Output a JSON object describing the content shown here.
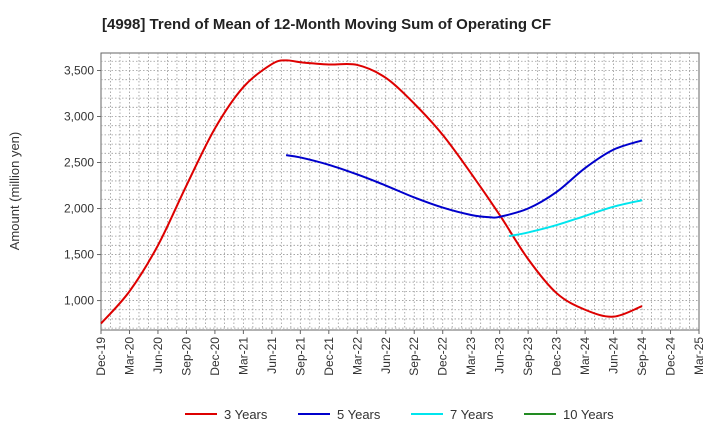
{
  "chart_data": {
    "type": "line",
    "title": "[4998]  Trend of Mean of 12-Month Moving Sum of Operating CF",
    "xlabel": "",
    "ylabel": "Amount (million yen)",
    "ylim": [
      680,
      3690
    ],
    "yticks": [
      1000,
      1500,
      2000,
      2500,
      3000,
      3500
    ],
    "ytick_labels": [
      "1,000",
      "1,500",
      "2,000",
      "2,500",
      "3,000",
      "3,500"
    ],
    "x_range": [
      0,
      63
    ],
    "xticks": [
      0,
      3,
      6,
      9,
      12,
      15,
      18,
      21,
      24,
      27,
      30,
      33,
      36,
      39,
      42,
      45,
      48,
      51,
      54,
      57,
      60,
      63
    ],
    "xtick_labels": [
      "Dec-19",
      "Mar-20",
      "Jun-20",
      "Sep-20",
      "Dec-20",
      "Mar-21",
      "Jun-21",
      "Sep-21",
      "Dec-21",
      "Mar-22",
      "Jun-22",
      "Sep-22",
      "Dec-22",
      "Mar-23",
      "Jun-23",
      "Sep-23",
      "Dec-23",
      "Mar-24",
      "Jun-24",
      "Sep-24",
      "Dec-24",
      "Mar-25"
    ],
    "grid": true,
    "legend_position": "bottom",
    "series": [
      {
        "name": "3 Years",
        "color": "#dd0000",
        "points": [
          [
            0,
            750
          ],
          [
            3,
            1100
          ],
          [
            6,
            1600
          ],
          [
            9,
            2250
          ],
          [
            12,
            2870
          ],
          [
            15,
            3320
          ],
          [
            18,
            3570
          ],
          [
            19.5,
            3610
          ],
          [
            21,
            3590
          ],
          [
            24,
            3565
          ],
          [
            27,
            3560
          ],
          [
            30,
            3420
          ],
          [
            33,
            3140
          ],
          [
            36,
            2800
          ],
          [
            39,
            2380
          ],
          [
            42,
            1930
          ],
          [
            45,
            1450
          ],
          [
            48,
            1080
          ],
          [
            51,
            900
          ],
          [
            54,
            825
          ],
          [
            57,
            940
          ]
        ]
      },
      {
        "name": "5 Years",
        "color": "#0000cc",
        "points": [
          [
            19.5,
            2580
          ],
          [
            21,
            2555
          ],
          [
            24,
            2475
          ],
          [
            27,
            2370
          ],
          [
            30,
            2250
          ],
          [
            33,
            2120
          ],
          [
            36,
            2010
          ],
          [
            39,
            1930
          ],
          [
            41,
            1905
          ],
          [
            42,
            1910
          ],
          [
            45,
            2000
          ],
          [
            48,
            2180
          ],
          [
            51,
            2440
          ],
          [
            54,
            2640
          ],
          [
            57,
            2740
          ]
        ]
      },
      {
        "name": "7 Years",
        "color": "#00e5ee",
        "points": [
          [
            43,
            1700
          ],
          [
            45,
            1740
          ],
          [
            48,
            1820
          ],
          [
            51,
            1920
          ],
          [
            54,
            2020
          ],
          [
            57,
            2090
          ]
        ]
      },
      {
        "name": "10 Years",
        "color": "#228b22",
        "points": []
      }
    ]
  }
}
